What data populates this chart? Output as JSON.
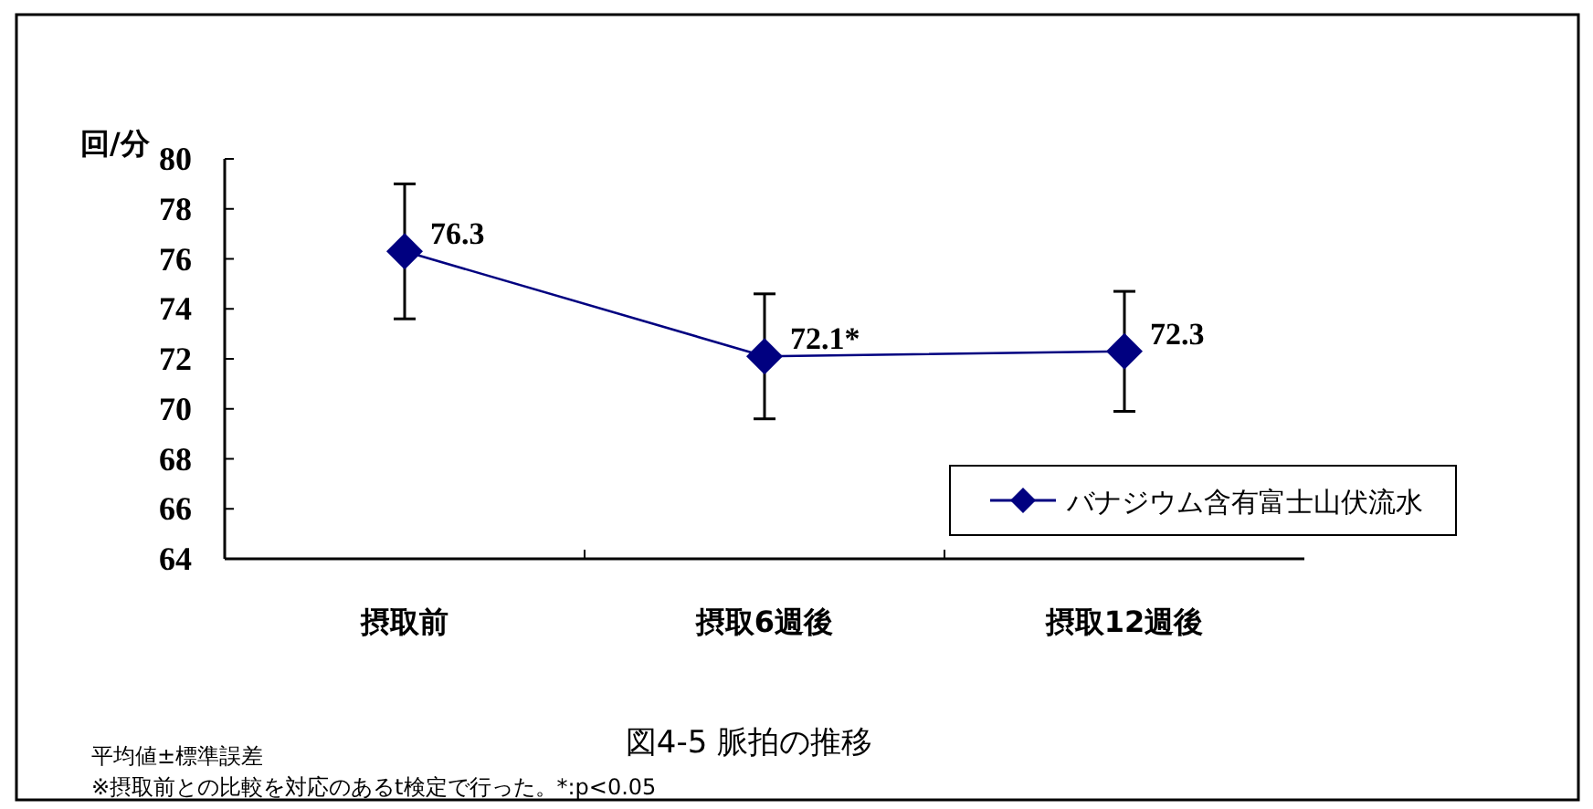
{
  "chart_data": {
    "type": "line",
    "title": "図4-5 脈拍の推移",
    "ylabel": "回/分",
    "categories": [
      "摂取前",
      "摂取6週後",
      "摂取12週後"
    ],
    "series": [
      {
        "name": "バナジウム含有富士山伏流水",
        "color": "#000080",
        "values": [
          76.3,
          72.1,
          72.3
        ],
        "errors": [
          2.7,
          2.5,
          2.4
        ],
        "value_labels": [
          "76.3",
          "72.1*",
          "72.3"
        ]
      }
    ],
    "ylim": [
      64,
      80
    ],
    "yticks": [
      64,
      66,
      68,
      70,
      72,
      74,
      76,
      78,
      80
    ],
    "marker": "diamond",
    "legend": "right",
    "grid": false,
    "annotations": [
      "平均値±標準誤差",
      "※摂取前との比較を対応のあるt検定で行った。*:p<0.05"
    ]
  }
}
